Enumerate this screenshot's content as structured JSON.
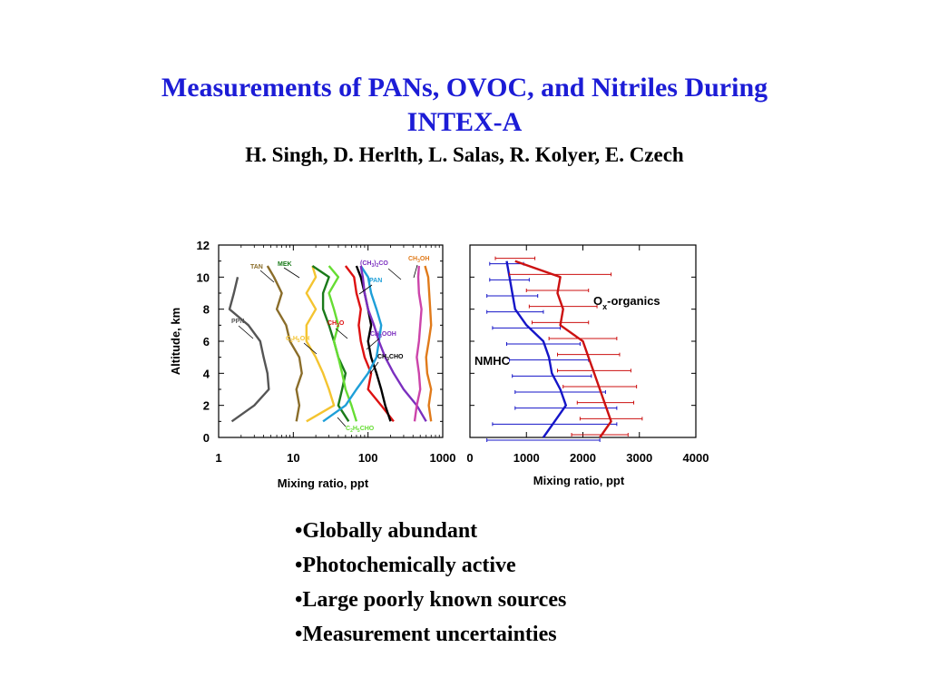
{
  "title_line1": "Measurements of PANs, OVOC, and Nitriles During",
  "title_line2": "INTEX-A",
  "authors": "H. Singh, D. Herlth, L. Salas, R. Kolyer, E. Czech",
  "bullets": [
    "Globally abundant",
    "Photochemically active",
    "Large poorly known sources",
    "Measurement uncertainties"
  ],
  "chart_data": [
    {
      "type": "line",
      "xlabel": "Mixing ratio, ppt",
      "ylabel": "Altitude, km",
      "xscale": "log",
      "xlim": [
        1,
        1000
      ],
      "ylim": [
        0,
        12
      ],
      "xticks": [
        "1",
        "10",
        "100",
        "1000"
      ],
      "yticks": [
        "0",
        "2",
        "4",
        "6",
        "8",
        "10",
        "12"
      ],
      "series": [
        {
          "name": "PPN",
          "color": "#555555",
          "alt": [
            1,
            2,
            3,
            4,
            5,
            6,
            7,
            8,
            9,
            10
          ],
          "values": [
            1.5,
            3.0,
            4.7,
            4.5,
            4.0,
            3.6,
            2.5,
            1.4,
            1.6,
            1.8
          ]
        },
        {
          "name": "TAN",
          "color": "#8a6d2a",
          "alt": [
            1,
            2,
            3,
            4,
            5,
            6,
            7,
            8,
            9,
            10,
            10.7
          ],
          "values": [
            11,
            12,
            11,
            13,
            12,
            9,
            8,
            6,
            7,
            5.5,
            4.5
          ]
        },
        {
          "name": "C2H5OH",
          "color": "#f4c430",
          "alt": [
            1,
            2,
            3,
            4,
            5,
            6,
            7,
            8,
            9,
            10,
            10.7
          ],
          "values": [
            15,
            35,
            30,
            25,
            20,
            15,
            15,
            20,
            15,
            20,
            18
          ]
        },
        {
          "name": "MEK",
          "color": "#1a7a1a",
          "alt": [
            1,
            2,
            3,
            4,
            5,
            6,
            7,
            8,
            9,
            10,
            10.7
          ],
          "values": [
            55,
            40,
            45,
            50,
            40,
            35,
            30,
            25,
            25,
            30,
            18
          ]
        },
        {
          "name": "CH2O",
          "color": "#dd1111",
          "alt": [
            1,
            2,
            3,
            4,
            5,
            6,
            7,
            8,
            9,
            10,
            10.7
          ],
          "values": [
            220,
            150,
            100,
            110,
            90,
            80,
            75,
            80,
            70,
            65,
            50
          ]
        },
        {
          "name": "CH3CHO",
          "color": "#000000",
          "alt": [
            1,
            2,
            3,
            4,
            5,
            6,
            7,
            8,
            9,
            10,
            10.7
          ],
          "values": [
            200,
            170,
            150,
            130,
            110,
            100,
            110,
            100,
            90,
            80,
            70
          ]
        },
        {
          "name": "C2H5CHO",
          "color": "#66dd33",
          "alt": [
            1,
            2,
            3,
            4,
            5,
            6,
            7,
            8,
            9,
            10,
            10.7
          ],
          "values": [
            70,
            60,
            50,
            45,
            40,
            35,
            40,
            35,
            30,
            40,
            30
          ]
        },
        {
          "name": "PAN",
          "color": "#1e9fd8",
          "alt": [
            1,
            2,
            3,
            4,
            5,
            6,
            7,
            8,
            9,
            10,
            10.7
          ],
          "values": [
            25,
            50,
            70,
            100,
            130,
            140,
            150,
            130,
            110,
            100,
            80
          ]
        },
        {
          "name": "CH3OOH",
          "color": "#7b2fbf",
          "alt": [
            1,
            2,
            3,
            4,
            5,
            6,
            7,
            8,
            9,
            10,
            10.7
          ],
          "values": [
            600,
            450,
            300,
            220,
            170,
            140,
            120,
            100,
            90,
            85,
            80
          ]
        },
        {
          "name": "(CH3)2CO",
          "color": "#cc44aa",
          "alt": [
            1,
            2,
            3,
            4,
            5,
            6,
            7,
            8,
            9,
            10,
            10.7
          ],
          "values": [
            420,
            450,
            500,
            480,
            450,
            480,
            500,
            520,
            480,
            470,
            480
          ]
        },
        {
          "name": "CH3OH",
          "color": "#e07a1a",
          "alt": [
            1,
            2,
            3,
            4,
            5,
            6,
            7,
            8,
            9,
            10,
            10.7
          ],
          "values": [
            700,
            650,
            700,
            620,
            600,
            650,
            700,
            680,
            660,
            640,
            580
          ]
        }
      ],
      "annotations": [
        "TAN",
        "MEK",
        "(CH3)2CO",
        "CH3OH",
        "PAN",
        "PPN",
        "CH2O",
        "C2H5OH",
        "CH3OOH",
        "CH3CHO",
        "C2H5CHO"
      ]
    },
    {
      "type": "line",
      "xlabel": "Mixing ratio, ppt",
      "xlim": [
        0,
        4000
      ],
      "ylim": [
        0,
        12
      ],
      "xticks": [
        "0",
        "1000",
        "2000",
        "3000",
        "4000"
      ],
      "error_bars": true,
      "series": [
        {
          "name": "NMHC",
          "color": "#1515c8",
          "alt": [
            0,
            1,
            2,
            3,
            4,
            5,
            6,
            7,
            8,
            9,
            10,
            11
          ],
          "values": [
            1300,
            1500,
            1700,
            1600,
            1450,
            1400,
            1300,
            1000,
            800,
            750,
            700,
            650
          ],
          "err": [
            1000,
            1100,
            900,
            800,
            700,
            700,
            650,
            600,
            500,
            450,
            350,
            300
          ]
        },
        {
          "name": "Ox-organics",
          "color": "#cc1111",
          "alt": [
            0,
            1,
            2,
            3,
            4,
            5,
            6,
            7,
            8,
            9,
            10,
            11
          ],
          "values": [
            2300,
            2500,
            2400,
            2300,
            2200,
            2100,
            2000,
            1600,
            1650,
            1550,
            1600,
            800
          ],
          "err": [
            500,
            550,
            500,
            650,
            650,
            550,
            600,
            500,
            600,
            550,
            900,
            350
          ]
        }
      ],
      "series_labels": {
        "nmhc": "NMHC",
        "ox_main": "O",
        "ox_sub": "x",
        "ox_rest": "-organics"
      }
    }
  ]
}
